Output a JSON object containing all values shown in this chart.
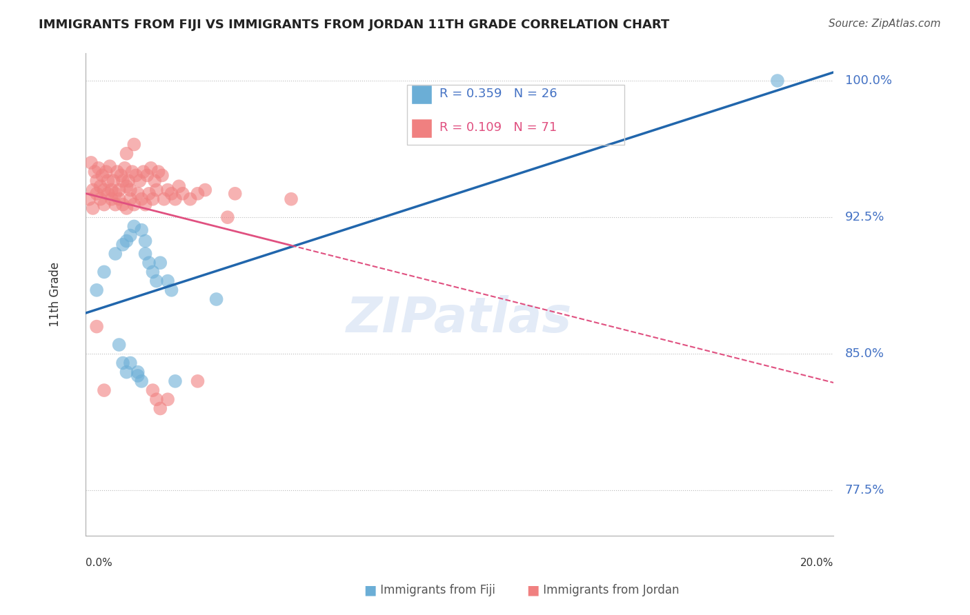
{
  "title": "IMMIGRANTS FROM FIJI VS IMMIGRANTS FROM JORDAN 11TH GRADE CORRELATION CHART",
  "source": "Source: ZipAtlas.com",
  "ylabel": "11th Grade",
  "xlim": [
    0.0,
    20.0
  ],
  "ylim": [
    75.0,
    101.5
  ],
  "yticks": [
    77.5,
    85.0,
    92.5,
    100.0
  ],
  "ytick_labels": [
    "77.5%",
    "85.0%",
    "92.5%",
    "100.0%"
  ],
  "fiji_color": "#6baed6",
  "jordan_color": "#f08080",
  "fiji_line_color": "#2166ac",
  "jordan_line_color": "#e05080",
  "fiji_R": 0.359,
  "fiji_N": 26,
  "jordan_R": 0.109,
  "jordan_N": 71,
  "fiji_x": [
    0.3,
    0.5,
    0.8,
    1.0,
    1.1,
    1.2,
    1.3,
    1.5,
    1.6,
    1.6,
    1.7,
    1.8,
    1.9,
    2.0,
    2.2,
    2.3,
    2.4,
    0.9,
    1.0,
    1.1,
    1.2,
    1.4,
    1.4,
    1.5,
    18.5,
    3.5
  ],
  "fiji_y": [
    88.5,
    89.5,
    90.5,
    91.0,
    91.2,
    91.5,
    92.0,
    91.8,
    91.2,
    90.5,
    90.0,
    89.5,
    89.0,
    90.0,
    89.0,
    88.5,
    83.5,
    85.5,
    84.5,
    84.0,
    84.5,
    84.0,
    83.8,
    83.5,
    100.0,
    88.0
  ],
  "jordan_x": [
    0.1,
    0.2,
    0.2,
    0.3,
    0.3,
    0.4,
    0.4,
    0.5,
    0.5,
    0.6,
    0.6,
    0.7,
    0.7,
    0.8,
    0.8,
    0.9,
    0.9,
    1.0,
    1.0,
    1.1,
    1.1,
    1.2,
    1.2,
    1.3,
    1.4,
    1.5,
    1.6,
    1.7,
    1.8,
    1.9,
    2.1,
    2.3,
    2.5,
    3.0,
    3.8,
    5.5,
    0.15,
    0.25,
    0.35,
    0.45,
    0.55,
    0.65,
    0.75,
    0.85,
    0.95,
    1.05,
    1.15,
    1.25,
    1.35,
    1.45,
    1.55,
    1.65,
    1.75,
    1.85,
    1.95,
    2.05,
    2.2,
    2.4,
    2.6,
    2.8,
    3.2,
    4.0,
    1.1,
    1.3,
    0.3,
    0.5,
    1.9,
    1.8,
    2.0,
    3.0,
    2.2
  ],
  "jordan_y": [
    93.5,
    94.0,
    93.0,
    94.5,
    93.8,
    94.2,
    93.5,
    94.0,
    93.2,
    93.8,
    94.5,
    93.5,
    94.0,
    93.2,
    93.8,
    93.5,
    94.0,
    93.2,
    94.5,
    93.0,
    94.2,
    93.5,
    94.0,
    93.2,
    93.8,
    93.5,
    93.2,
    93.8,
    93.5,
    94.0,
    93.5,
    93.8,
    94.2,
    93.8,
    92.5,
    93.5,
    95.5,
    95.0,
    95.2,
    94.8,
    95.0,
    95.3,
    94.5,
    95.0,
    94.8,
    95.2,
    94.5,
    95.0,
    94.8,
    94.5,
    95.0,
    94.8,
    95.2,
    94.5,
    95.0,
    94.8,
    94.0,
    93.5,
    93.8,
    93.5,
    94.0,
    93.8,
    96.0,
    96.5,
    86.5,
    83.0,
    82.5,
    83.0,
    82.0,
    83.5,
    82.5
  ]
}
